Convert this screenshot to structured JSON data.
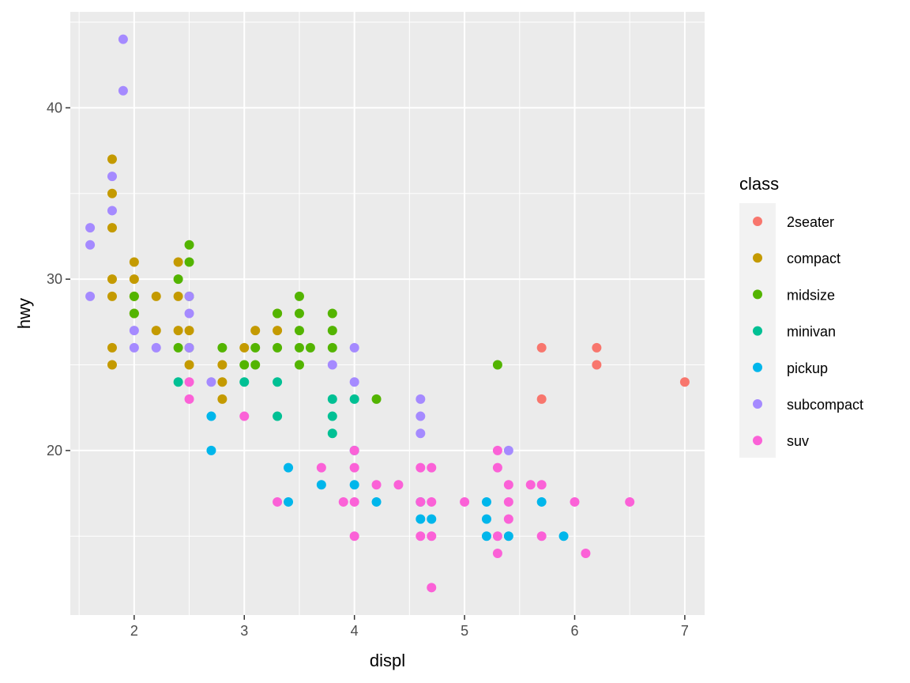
{
  "chart_data": {
    "type": "scatter",
    "xlabel": "displ",
    "ylabel": "hwy",
    "xlim": [
      1.42,
      7.18
    ],
    "ylim": [
      10.4,
      45.6
    ],
    "x_ticks": [
      2,
      3,
      4,
      5,
      6,
      7
    ],
    "y_ticks": [
      20,
      30,
      40
    ],
    "x_tick_labels": [
      "2",
      "3",
      "4",
      "5",
      "6",
      "7"
    ],
    "y_tick_labels": [
      "20",
      "30",
      "40"
    ],
    "grid": true,
    "legend": {
      "title": "class",
      "placement": "right",
      "entries": [
        {
          "name": "2seater",
          "color": "#F8766D"
        },
        {
          "name": "compact",
          "color": "#C49A00"
        },
        {
          "name": "midsize",
          "color": "#53B400"
        },
        {
          "name": "minivan",
          "color": "#00C094"
        },
        {
          "name": "pickup",
          "color": "#00B6EB"
        },
        {
          "name": "subcompact",
          "color": "#A58AFF"
        },
        {
          "name": "suv",
          "color": "#FB61D7"
        }
      ]
    },
    "series": [
      {
        "name": "2seater",
        "color": "#F8766D",
        "points": [
          [
            5.7,
            26
          ],
          [
            5.7,
            23
          ],
          [
            6.2,
            26
          ],
          [
            6.2,
            25
          ],
          [
            7.0,
            24
          ]
        ]
      },
      {
        "name": "compact",
        "color": "#C49A00",
        "points": [
          [
            1.8,
            37
          ],
          [
            1.8,
            35
          ],
          [
            1.8,
            33
          ],
          [
            1.8,
            30
          ],
          [
            1.8,
            29
          ],
          [
            1.8,
            26
          ],
          [
            1.8,
            25
          ],
          [
            2.0,
            31
          ],
          [
            2.0,
            30
          ],
          [
            2.0,
            29
          ],
          [
            2.0,
            28
          ],
          [
            2.2,
            29
          ],
          [
            2.2,
            27
          ],
          [
            2.4,
            31
          ],
          [
            2.4,
            29
          ],
          [
            2.4,
            27
          ],
          [
            2.5,
            27
          ],
          [
            2.5,
            25
          ],
          [
            2.8,
            25
          ],
          [
            2.8,
            24
          ],
          [
            2.8,
            23
          ],
          [
            3.0,
            26
          ],
          [
            3.1,
            27
          ],
          [
            3.3,
            28
          ],
          [
            3.3,
            27
          ]
        ]
      },
      {
        "name": "midsize",
        "color": "#53B400",
        "points": [
          [
            2.0,
            29
          ],
          [
            2.0,
            28
          ],
          [
            2.4,
            30
          ],
          [
            2.4,
            26
          ],
          [
            2.5,
            32
          ],
          [
            2.5,
            31
          ],
          [
            2.5,
            29
          ],
          [
            2.5,
            26
          ],
          [
            2.8,
            26
          ],
          [
            3.0,
            25
          ],
          [
            3.1,
            26
          ],
          [
            3.1,
            25
          ],
          [
            3.3,
            28
          ],
          [
            3.3,
            26
          ],
          [
            3.5,
            29
          ],
          [
            3.5,
            28
          ],
          [
            3.5,
            27
          ],
          [
            3.5,
            26
          ],
          [
            3.5,
            25
          ],
          [
            3.6,
            26
          ],
          [
            3.8,
            28
          ],
          [
            3.8,
            27
          ],
          [
            3.8,
            26
          ],
          [
            4.2,
            23
          ],
          [
            5.3,
            25
          ]
        ]
      },
      {
        "name": "minivan",
        "color": "#00C094",
        "points": [
          [
            2.4,
            24
          ],
          [
            3.0,
            24
          ],
          [
            3.3,
            24
          ],
          [
            3.3,
            22
          ],
          [
            3.8,
            23
          ],
          [
            3.8,
            22
          ],
          [
            3.8,
            21
          ],
          [
            4.0,
            23
          ]
        ]
      },
      {
        "name": "pickup",
        "color": "#00B6EB",
        "points": [
          [
            2.7,
            22
          ],
          [
            2.7,
            20
          ],
          [
            3.4,
            19
          ],
          [
            3.4,
            17
          ],
          [
            3.7,
            18
          ],
          [
            4.0,
            20
          ],
          [
            4.0,
            18
          ],
          [
            4.2,
            17
          ],
          [
            4.6,
            17
          ],
          [
            4.6,
            16
          ],
          [
            4.7,
            16
          ],
          [
            5.2,
            17
          ],
          [
            5.2,
            16
          ],
          [
            5.2,
            15
          ],
          [
            5.4,
            15
          ],
          [
            5.7,
            17
          ],
          [
            5.9,
            15
          ]
        ]
      },
      {
        "name": "subcompact",
        "color": "#A58AFF",
        "points": [
          [
            1.6,
            33
          ],
          [
            1.6,
            32
          ],
          [
            1.6,
            29
          ],
          [
            1.8,
            36
          ],
          [
            1.8,
            34
          ],
          [
            1.9,
            44
          ],
          [
            1.9,
            41
          ],
          [
            2.0,
            27
          ],
          [
            2.0,
            26
          ],
          [
            2.2,
            26
          ],
          [
            2.5,
            29
          ],
          [
            2.5,
            28
          ],
          [
            2.5,
            26
          ],
          [
            2.7,
            24
          ],
          [
            3.8,
            25
          ],
          [
            4.0,
            26
          ],
          [
            4.0,
            24
          ],
          [
            4.6,
            23
          ],
          [
            4.6,
            22
          ],
          [
            4.6,
            21
          ],
          [
            5.4,
            20
          ]
        ]
      },
      {
        "name": "suv",
        "color": "#FB61D7",
        "points": [
          [
            2.5,
            24
          ],
          [
            2.5,
            23
          ],
          [
            3.0,
            22
          ],
          [
            3.3,
            17
          ],
          [
            3.7,
            19
          ],
          [
            3.9,
            17
          ],
          [
            4.0,
            20
          ],
          [
            4.0,
            19
          ],
          [
            4.0,
            17
          ],
          [
            4.0,
            15
          ],
          [
            4.2,
            18
          ],
          [
            4.4,
            18
          ],
          [
            4.6,
            19
          ],
          [
            4.6,
            17
          ],
          [
            4.6,
            15
          ],
          [
            4.7,
            19
          ],
          [
            4.7,
            17
          ],
          [
            4.7,
            15
          ],
          [
            4.7,
            12
          ],
          [
            5.0,
            17
          ],
          [
            5.3,
            20
          ],
          [
            5.3,
            19
          ],
          [
            5.3,
            15
          ],
          [
            5.3,
            14
          ],
          [
            5.4,
            18
          ],
          [
            5.4,
            17
          ],
          [
            5.4,
            16
          ],
          [
            5.6,
            18
          ],
          [
            5.7,
            18
          ],
          [
            5.7,
            15
          ],
          [
            6.0,
            17
          ],
          [
            6.1,
            14
          ],
          [
            6.5,
            17
          ]
        ]
      }
    ]
  }
}
